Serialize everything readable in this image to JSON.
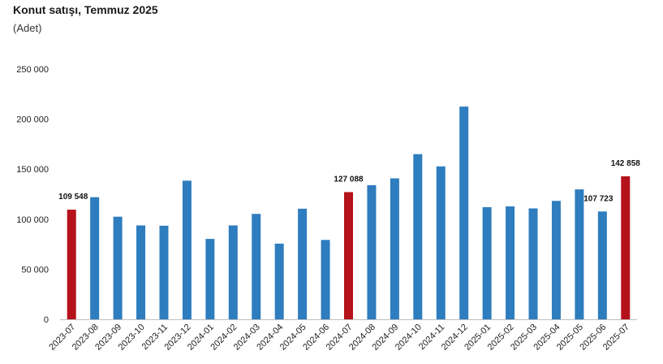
{
  "title": "Konut satışı, Temmuz 2025",
  "subtitle": "(Adet)",
  "colors": {
    "default_bar": "#2e7dbf",
    "highlight_bar": "#b5121b",
    "axis": "#bfbfbf"
  },
  "chart_data": {
    "type": "bar",
    "title": "Konut satışı, Temmuz 2025",
    "subtitle": "(Adet)",
    "xlabel": "",
    "ylabel": "",
    "ylim": [
      0,
      250000
    ],
    "yticks": [
      0,
      50000,
      100000,
      150000,
      200000,
      250000
    ],
    "ytick_labels": [
      "0",
      "50 000",
      "100 000",
      "150 000",
      "200 000",
      "250 000"
    ],
    "grid": false,
    "legend": "none",
    "categories": [
      "2023-07",
      "2023-08",
      "2023-09",
      "2023-10",
      "2023-11",
      "2023-12",
      "2024-01",
      "2024-02",
      "2024-03",
      "2024-04",
      "2024-05",
      "2024-06",
      "2024-07",
      "2024-08",
      "2024-09",
      "2024-10",
      "2024-11",
      "2024-12",
      "2025-01",
      "2025-02",
      "2025-03",
      "2025-04",
      "2025-05",
      "2025-06",
      "2025-07"
    ],
    "values": [
      109548,
      122000,
      102500,
      93800,
      93500,
      138500,
      80300,
      93800,
      105300,
      75600,
      110500,
      79300,
      127088,
      134000,
      140800,
      165000,
      152800,
      212500,
      112000,
      112800,
      110800,
      118300,
      129800,
      107723,
      142858
    ],
    "highlighted": [
      "2023-07",
      "2024-07",
      "2025-07"
    ],
    "data_labels": [
      {
        "category": "2023-07",
        "text": "109 548"
      },
      {
        "category": "2024-07",
        "text": "127 088"
      },
      {
        "category": "2025-06",
        "text": "107 723"
      },
      {
        "category": "2025-07",
        "text": "142 858"
      }
    ]
  }
}
